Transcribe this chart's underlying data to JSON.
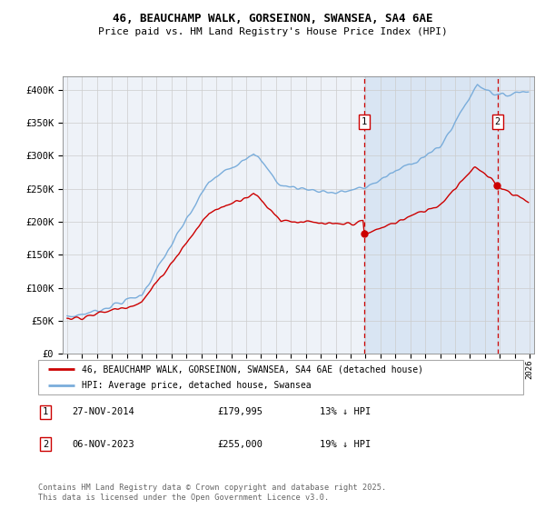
{
  "title1": "46, BEAUCHAMP WALK, GORSEINON, SWANSEA, SA4 6AE",
  "title2": "Price paid vs. HM Land Registry's House Price Index (HPI)",
  "legend1": "46, BEAUCHAMP WALK, GORSEINON, SWANSEA, SA4 6AE (detached house)",
  "legend2": "HPI: Average price, detached house, Swansea",
  "annotation1_date": "27-NOV-2014",
  "annotation1_price": "£179,995",
  "annotation1_hpi": "13% ↓ HPI",
  "annotation2_date": "06-NOV-2023",
  "annotation2_price": "£255,000",
  "annotation2_hpi": "19% ↓ HPI",
  "footer": "Contains HM Land Registry data © Crown copyright and database right 2025.\nThis data is licensed under the Open Government Licence v3.0.",
  "red_color": "#cc0000",
  "blue_color": "#7aaddb",
  "vline_color": "#cc0000",
  "bg_color": "#ffffff",
  "plot_bg": "#eef2f8",
  "grid_color": "#cccccc",
  "ylim": [
    0,
    420000
  ],
  "xlim_start": 1994.7,
  "xlim_end": 2026.3,
  "marker1_x": 2014.92,
  "marker2_x": 2023.85,
  "sale1_price": 179995,
  "sale2_price": 255000
}
